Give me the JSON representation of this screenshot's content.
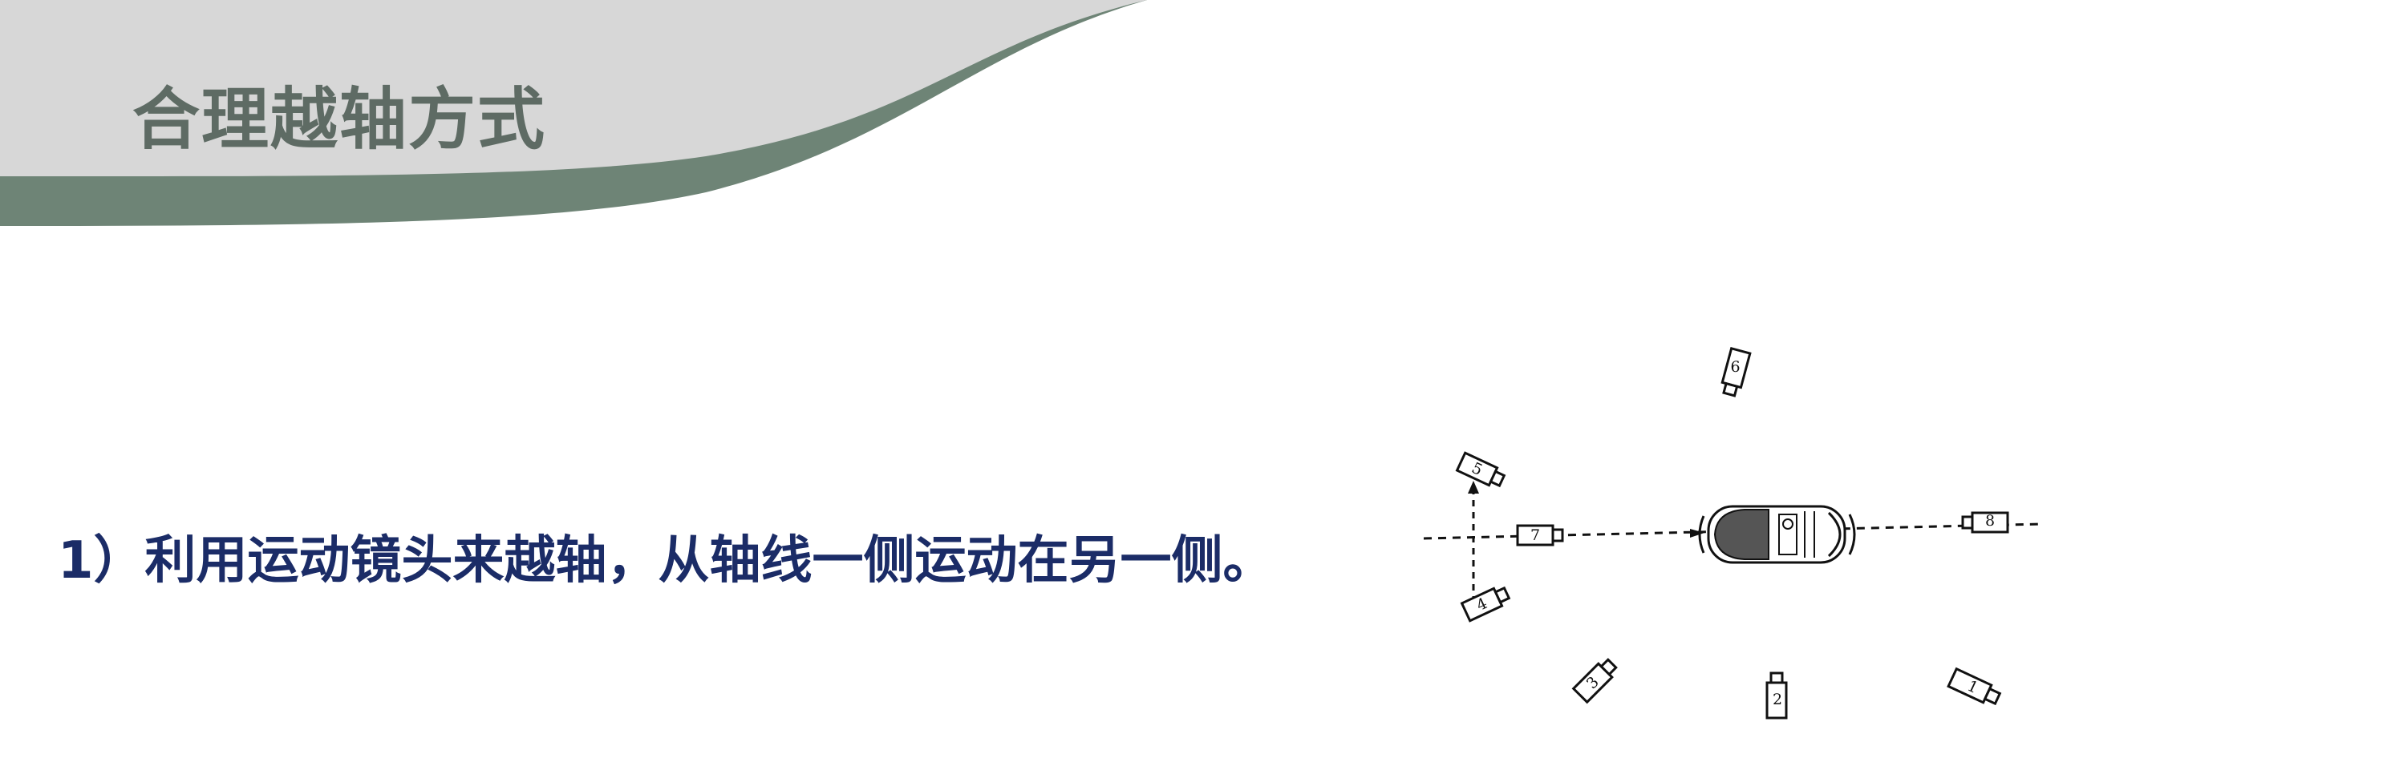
{
  "slide": {
    "title": "合理越轴方式",
    "point": "1）利用运动镜头来越轴，从轴线一侧运动在另一侧。"
  },
  "colors": {
    "header_gray": "#d7d7d7",
    "header_green": "#6e8476",
    "title_text": "#5e6b64",
    "body_text": "#1b2c67"
  },
  "diagram": {
    "camera_labels": [
      "1",
      "2",
      "3",
      "4",
      "5",
      "6",
      "7",
      "8"
    ]
  }
}
